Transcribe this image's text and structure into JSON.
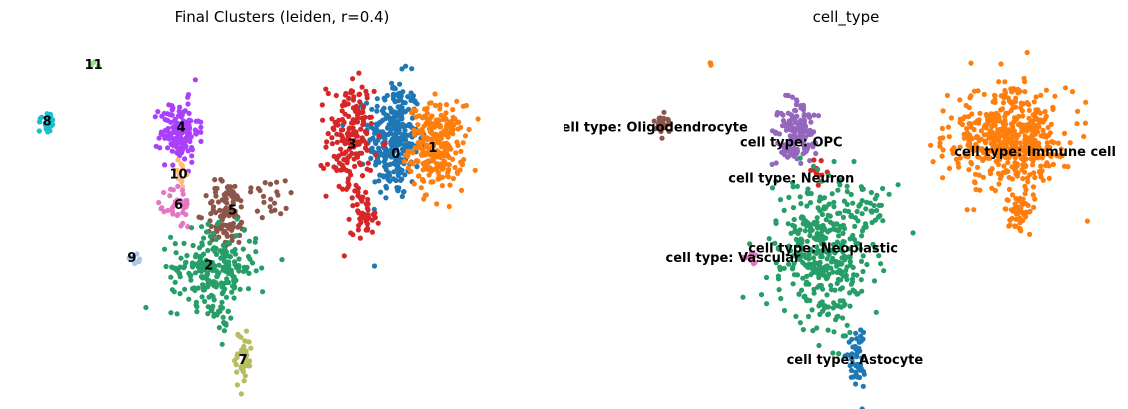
{
  "chart_data": [
    {
      "type": "scatter",
      "title": "Final Clusters (leiden, r=0.4)",
      "xlabel": "",
      "ylabel": "",
      "xlim": [
        0,
        100
      ],
      "ylim": [
        0,
        100
      ],
      "grid": false,
      "legend": "on data",
      "colors": {
        "0": "#1f77b4",
        "1": "#ff7f0e",
        "2": "#279e68",
        "3": "#d62728",
        "4": "#aa40fc",
        "5": "#8c564b",
        "6": "#e377c2",
        "7": "#b5bd61",
        "8": "#17becf",
        "9": "#aec7e8",
        "10": "#ffbb78",
        "11": "#98df8a"
      },
      "clusters": [
        {
          "label": "0",
          "cx": 72.5,
          "cy": 69,
          "sx": 2.4,
          "sy": 8,
          "n": 300
        },
        {
          "label": "1",
          "cx": 80.5,
          "cy": 67,
          "sx": 2.6,
          "sy": 5.5,
          "n": 260
        },
        {
          "label": "3",
          "cx": 64.2,
          "cy": 69,
          "sx": 2.2,
          "sy": 8,
          "n": 170
        },
        {
          "label": "3",
          "cx": 67,
          "cy": 49,
          "sx": 1.3,
          "sy": 2.5,
          "n": 45
        },
        {
          "label": "4",
          "cx": 32,
          "cy": 71,
          "sx": 1.8,
          "sy": 4,
          "n": 150
        },
        {
          "label": "8",
          "cx": 7,
          "cy": 73.5,
          "sx": 0.8,
          "sy": 1.5,
          "n": 30
        },
        {
          "label": "11",
          "cx": 15.8,
          "cy": 88.5,
          "sx": 0.4,
          "sy": 0.6,
          "n": 5
        },
        {
          "label": "10",
          "cx": 32,
          "cy": 60,
          "sx": 0.6,
          "sy": 2,
          "n": 12
        },
        {
          "label": "6",
          "cx": 31.8,
          "cy": 51.5,
          "sx": 1.2,
          "sy": 3,
          "n": 40
        },
        {
          "label": "5",
          "cx": 41,
          "cy": 49,
          "sx": 2,
          "sy": 4.5,
          "n": 110
        },
        {
          "label": "5",
          "cx": 49,
          "cy": 54,
          "sx": 2.5,
          "sy": 3,
          "n": 22
        },
        {
          "label": "2",
          "cx": 38.5,
          "cy": 35,
          "sx": 4,
          "sy": 5,
          "n": 230
        },
        {
          "label": "2",
          "cx": 40,
          "cy": 21,
          "sx": 1.2,
          "sy": 3,
          "n": 18
        },
        {
          "label": "9",
          "cx": 23.5,
          "cy": 37.5,
          "sx": 0.8,
          "sy": 0.7,
          "n": 10
        },
        {
          "label": "7",
          "cx": 44,
          "cy": 11,
          "sx": 0.8,
          "sy": 4,
          "n": 45
        }
      ],
      "labels": [
        {
          "text": "11",
          "x": 15.8,
          "y": 88.5
        },
        {
          "text": "8",
          "x": 7,
          "y": 73.5
        },
        {
          "text": "4",
          "x": 32.3,
          "y": 72
        },
        {
          "text": "3",
          "x": 64.5,
          "y": 67.5
        },
        {
          "text": "0",
          "x": 72.8,
          "y": 65
        },
        {
          "text": "1",
          "x": 79.8,
          "y": 66.5
        },
        {
          "text": "10",
          "x": 31.8,
          "y": 59.5
        },
        {
          "text": "6",
          "x": 31.8,
          "y": 51.5
        },
        {
          "text": "5",
          "x": 42,
          "y": 50
        },
        {
          "text": "9",
          "x": 23,
          "y": 37.5
        },
        {
          "text": "2",
          "x": 37.5,
          "y": 35.5
        },
        {
          "text": "7",
          "x": 44,
          "y": 10.5
        }
      ]
    },
    {
      "type": "scatter",
      "title": "cell_type",
      "xlabel": "",
      "ylabel": "",
      "xlim": [
        0,
        100
      ],
      "ylim": [
        0,
        100
      ],
      "grid": false,
      "legend": "on data",
      "colors": {
        "cell type: Astocyte": "#1f77b4",
        "cell type: Immune cell": "#ff7f0e",
        "cell type: Neoplastic": "#279e68",
        "cell type: Neuron": "#d62728",
        "cell type: OPC": "#9467bd",
        "cell type: Oligodendrocyte": "#8c564b",
        "cell type: Vascular": "#e377c2"
      },
      "clusters": [
        {
          "label": "cell type: Immune cell",
          "cx": 82,
          "cy": 69,
          "sx": 5.5,
          "sy": 6.5,
          "n": 520
        },
        {
          "label": "cell type: Immune cell",
          "cx": 84,
          "cy": 49,
          "sx": 1.2,
          "sy": 2.5,
          "n": 45
        },
        {
          "label": "cell type: Immune cell",
          "cx": 25.8,
          "cy": 88.8,
          "sx": 0.2,
          "sy": 0.3,
          "n": 3
        },
        {
          "label": "cell type: Oligodendrocyte",
          "cx": 16.5,
          "cy": 73,
          "sx": 0.8,
          "sy": 1.5,
          "n": 30
        },
        {
          "label": "cell type: OPC",
          "cx": 42,
          "cy": 71,
          "sx": 1.8,
          "sy": 4,
          "n": 150
        },
        {
          "label": "cell type: Neuron",
          "cx": 46.5,
          "cy": 60.5,
          "sx": 1,
          "sy": 1.8,
          "n": 12
        },
        {
          "label": "cell type: Neoplastic",
          "cx": 47,
          "cy": 40,
          "sx": 4.5,
          "sy": 9,
          "n": 380
        },
        {
          "label": "cell type: Neoplastic",
          "cx": 57,
          "cy": 53,
          "sx": 2,
          "sy": 3,
          "n": 20
        },
        {
          "label": "cell type: Neoplastic",
          "cx": 48.5,
          "cy": 22,
          "sx": 1.2,
          "sy": 3,
          "n": 18
        },
        {
          "label": "cell type: Vascular",
          "cx": 33,
          "cy": 37.5,
          "sx": 0.7,
          "sy": 0.6,
          "n": 10
        },
        {
          "label": "cell type: Astocyte",
          "cx": 53.5,
          "cy": 11,
          "sx": 0.8,
          "sy": 5,
          "n": 50
        }
      ],
      "labels": [
        {
          "text": "cell type: Oligodendrocyte",
          "x": 14.5,
          "y": 72
        },
        {
          "text": "cell type: OPC",
          "x": 41,
          "y": 68
        },
        {
          "text": "cell type: Immune cell",
          "x": 87,
          "y": 65.5
        },
        {
          "text": "cell type: Neuron",
          "x": 41,
          "y": 58.5
        },
        {
          "text": "cell type: Neoplastic",
          "x": 47,
          "y": 40
        },
        {
          "text": "cell type: Vascular",
          "x": 30,
          "y": 37.5
        },
        {
          "text": "cell type: Astocyte",
          "x": 53,
          "y": 10.5
        }
      ]
    }
  ]
}
